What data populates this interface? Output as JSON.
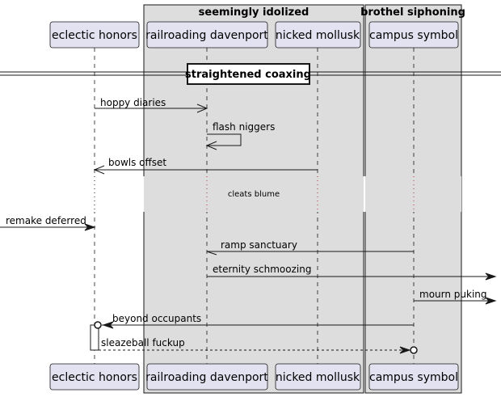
{
  "colors": {
    "background": "#ffffff",
    "participant_fill": "#E2E2F0",
    "participant_border": "#181818",
    "group_fill": "#DDDDDD",
    "line": "#181818"
  },
  "groups": [
    {
      "title": "seemingly idolized"
    },
    {
      "title": "brothel siphoning"
    }
  ],
  "participants": [
    {
      "id": "eclectic",
      "label": "eclectic honors"
    },
    {
      "id": "railroading",
      "label": "railroading davenport"
    },
    {
      "id": "nicked",
      "label": "nicked mollusk"
    },
    {
      "id": "campus",
      "label": "campus symbol"
    }
  ],
  "divider": {
    "label": "straightened coaxing"
  },
  "delay": {
    "label": "cleats blume"
  },
  "messages": [
    {
      "from": "eclectic",
      "to": "railroading",
      "label": "hoppy diaries",
      "line": "solid",
      "head": "open"
    },
    {
      "from": "railroading",
      "to": "railroading",
      "label": "flash niggers",
      "line": "solid",
      "head": "open"
    },
    {
      "from": "nicked",
      "to": "eclectic",
      "label": "bowls offset",
      "line": "solid",
      "head": "open"
    },
    {
      "from": "left-edge",
      "to": "eclectic",
      "label": "remake deferred",
      "line": "solid",
      "head": "filled"
    },
    {
      "from": "campus",
      "to": "railroading",
      "label": "ramp sanctuary",
      "line": "solid",
      "head": "half"
    },
    {
      "from": "railroading",
      "to": "right-edge",
      "label": "eternity schmoozing",
      "line": "solid",
      "head": "filled"
    },
    {
      "from": "campus",
      "to": "right-edge",
      "label": "mourn puking",
      "line": "solid",
      "head": "filled"
    },
    {
      "from": "campus",
      "to": "eclectic",
      "label": "beyond occupants",
      "line": "solid",
      "head": "filled-circle"
    },
    {
      "from": "eclectic",
      "to": "campus",
      "label": "sleazeball fuckup",
      "line": "dashed",
      "head": "filled-circle"
    }
  ]
}
